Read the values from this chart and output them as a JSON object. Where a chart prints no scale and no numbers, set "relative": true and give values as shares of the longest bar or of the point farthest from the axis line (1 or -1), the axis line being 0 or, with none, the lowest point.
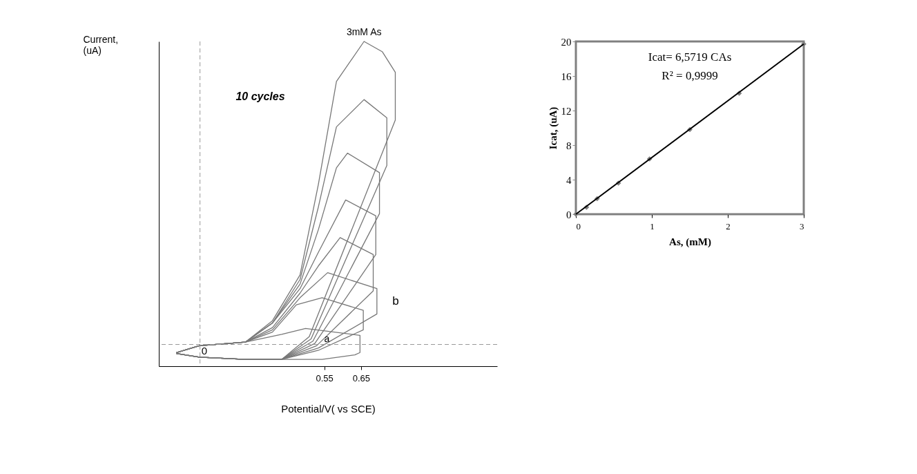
{
  "chart_data": [
    {
      "type": "line",
      "relative": true,
      "xlabel": "Potential/V( vs SCE)",
      "ylabel": "Current, (uA)",
      "xlim": [
        0.1,
        1.02
      ],
      "xticks": [
        0.55,
        0.65
      ],
      "tick_labels": "x",
      "annotations": [
        "10 cycles",
        {
          "text": "3mM As",
          "x": 0.658,
          "y": 1.0
        },
        {
          "text": "a",
          "x": 0.557,
          "y": 0.056
        },
        "b"
      ],
      "ref_lines": [
        {
          "axis": "x",
          "value": 0.212,
          "color": "#999999",
          "line_style": "dashed"
        },
        {
          "axis": "y",
          "value": 0.067,
          "label": "0",
          "color": "#999999",
          "line_style": "dashed"
        }
      ],
      "series": [
        {
          "color": "#777777",
          "x": [
            0.148,
            0.21,
            0.335,
            0.409,
            0.484,
            0.534,
            0.583,
            0.658,
            0.708,
            0.743,
            0.743,
            0.509,
            0.434,
            0.335,
            0.21,
            0.148
          ],
          "values": [
            0.042,
            0.063,
            0.074,
            0.14,
            0.281,
            0.561,
            0.877,
            1.0,
            0.968,
            0.905,
            0.758,
            0.091,
            0.021,
            0.021,
            0.028,
            0.039
          ]
        },
        {
          "color": "#777777",
          "x": [
            0.148,
            0.21,
            0.335,
            0.409,
            0.484,
            0.534,
            0.583,
            0.658,
            0.72,
            0.72,
            0.514,
            0.434,
            0.335,
            0.21,
            0.148
          ],
          "values": [
            0.042,
            0.063,
            0.074,
            0.133,
            0.267,
            0.491,
            0.737,
            0.821,
            0.765,
            0.618,
            0.084,
            0.021,
            0.021,
            0.028,
            0.039
          ]
        },
        {
          "color": "#777777",
          "x": [
            0.148,
            0.21,
            0.335,
            0.409,
            0.484,
            0.534,
            0.583,
            0.613,
            0.7,
            0.7,
            0.519,
            0.434,
            0.335,
            0.21,
            0.148
          ],
          "values": [
            0.042,
            0.063,
            0.074,
            0.133,
            0.253,
            0.421,
            0.611,
            0.656,
            0.596,
            0.47,
            0.077,
            0.021,
            0.021,
            0.028,
            0.039
          ]
        },
        {
          "color": "#777777",
          "x": [
            0.148,
            0.21,
            0.335,
            0.409,
            0.484,
            0.534,
            0.608,
            0.69,
            0.69,
            0.524,
            0.434,
            0.335,
            0.21,
            0.148
          ],
          "values": [
            0.042,
            0.063,
            0.074,
            0.133,
            0.239,
            0.351,
            0.512,
            0.463,
            0.344,
            0.07,
            0.021,
            0.021,
            0.028,
            0.039
          ]
        },
        {
          "color": "#777777",
          "x": [
            0.148,
            0.21,
            0.335,
            0.409,
            0.484,
            0.534,
            0.593,
            0.683,
            0.683,
            0.529,
            0.434,
            0.335,
            0.21,
            0.148
          ],
          "values": [
            0.042,
            0.063,
            0.074,
            0.119,
            0.225,
            0.309,
            0.396,
            0.344,
            0.232,
            0.063,
            0.021,
            0.021,
            0.028,
            0.039
          ]
        },
        {
          "color": "#777777",
          "x": [
            0.148,
            0.21,
            0.335,
            0.409,
            0.484,
            0.559,
            0.693,
            0.693,
            0.534,
            0.434,
            0.335,
            0.21,
            0.148
          ],
          "values": [
            0.042,
            0.063,
            0.074,
            0.112,
            0.211,
            0.288,
            0.239,
            0.161,
            0.056,
            0.021,
            0.021,
            0.028,
            0.039
          ]
        },
        {
          "color": "#777777",
          "x": [
            0.148,
            0.21,
            0.335,
            0.409,
            0.474,
            0.544,
            0.656,
            0.656,
            0.534,
            0.434,
            0.335,
            0.21,
            0.148
          ],
          "values": [
            0.042,
            0.063,
            0.074,
            0.105,
            0.189,
            0.211,
            0.172,
            0.112,
            0.049,
            0.021,
            0.021,
            0.028,
            0.039
          ]
        },
        {
          "color": "#777777",
          "x": [
            0.148,
            0.21,
            0.335,
            0.434,
            0.499,
            0.647,
            0.647,
            0.633,
            0.544,
            0.434,
            0.335,
            0.21,
            0.148
          ],
          "values": [
            0.042,
            0.063,
            0.074,
            0.098,
            0.116,
            0.095,
            0.042,
            0.035,
            0.021,
            0.021,
            0.021,
            0.028,
            0.039
          ]
        }
      ]
    },
    {
      "type": "scatter",
      "xlabel": "As, (mM)",
      "ylabel": "Icat, (uA)",
      "xlim": [
        0,
        3
      ],
      "ylim": [
        0,
        20
      ],
      "xticks": [
        0,
        1,
        2,
        3
      ],
      "yticks": [
        0,
        4,
        8,
        12,
        16,
        20
      ],
      "annotations": [
        "Icat= 6,5719 CAs",
        "R² = 0,9999"
      ],
      "series": [
        {
          "color": "#808080",
          "marker": "diamond",
          "x": [
            0,
            0.14,
            0.28,
            0.56,
            0.97,
            1.5,
            2.15,
            3.0
          ],
          "values": [
            0,
            0.8,
            1.8,
            3.6,
            6.4,
            9.8,
            14,
            19.7
          ]
        },
        {
          "type": "line",
          "color": "#000000",
          "x": [
            0,
            3
          ],
          "values": [
            0,
            19.7
          ]
        }
      ]
    }
  ]
}
